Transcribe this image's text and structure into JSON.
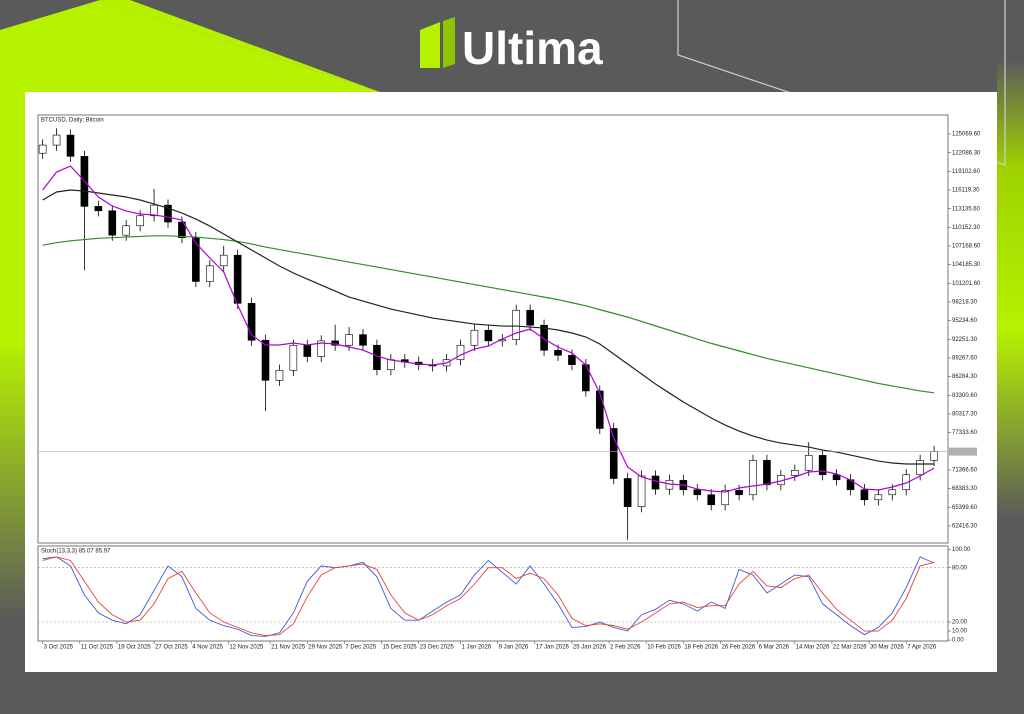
{
  "header": {
    "brand": "Ultima"
  },
  "chart_data": {
    "type": "candlestick",
    "title": "BTCUSD, Daily: Bitcoin",
    "x": [
      "2025-10-03",
      "2025-10-06",
      "2025-10-09",
      "2025-10-12",
      "2025-10-15",
      "2025-10-18",
      "2025-10-21",
      "2025-10-24",
      "2025-10-27",
      "2025-10-30",
      "2025-11-02",
      "2025-11-05",
      "2025-11-08",
      "2025-11-11",
      "2025-11-14",
      "2025-11-17",
      "2025-11-20",
      "2025-11-23",
      "2025-11-26",
      "2025-11-29",
      "2025-12-02",
      "2025-12-05",
      "2025-12-08",
      "2025-12-11",
      "2025-12-14",
      "2025-12-17",
      "2025-12-20",
      "2025-12-23",
      "2025-12-26",
      "2025-12-29",
      "2026-01-01",
      "2026-01-04",
      "2026-01-07",
      "2026-01-10",
      "2026-01-13",
      "2026-01-16",
      "2026-01-19",
      "2026-01-22",
      "2026-01-25",
      "2026-01-28",
      "2026-01-31",
      "2026-02-03",
      "2026-02-06",
      "2026-02-09",
      "2026-02-12",
      "2026-02-15",
      "2026-02-18",
      "2026-02-21",
      "2026-02-24",
      "2026-02-27",
      "2026-03-02",
      "2026-03-05",
      "2026-03-08",
      "2026-03-11",
      "2026-03-14",
      "2026-03-17",
      "2026-03-20",
      "2026-03-23",
      "2026-03-26",
      "2026-03-29",
      "2026-04-01",
      "2026-04-04",
      "2026-04-07",
      "2026-04-10",
      "2026-04-13"
    ],
    "open": [
      122000,
      123300,
      124900,
      121500,
      113500,
      112800,
      108900,
      110400,
      112000,
      113700,
      111000,
      108500,
      101500,
      104000,
      105700,
      98000,
      92100,
      85700,
      87300,
      91300,
      89500,
      92000,
      91300,
      93000,
      91300,
      87400,
      89000,
      88600,
      88200,
      88000,
      89000,
      91300,
      93700,
      92000,
      92200,
      96900,
      94500,
      90500,
      89700,
      88200,
      84000,
      78000,
      70000,
      65500,
      70400,
      68300,
      69700,
      68200,
      67400,
      65800,
      68100,
      67400,
      72900,
      69000,
      70500,
      71300,
      73700,
      70600,
      69800,
      68200,
      66600,
      67400,
      68200,
      70600,
      72900
    ],
    "high": [
      124200,
      126000,
      125800,
      122400,
      114400,
      113700,
      111300,
      112900,
      116300,
      114600,
      111900,
      109400,
      104900,
      107200,
      106600,
      98900,
      93000,
      88200,
      92200,
      92200,
      92900,
      94600,
      94200,
      93900,
      92200,
      89900,
      89900,
      89500,
      89100,
      89900,
      92200,
      94600,
      94600,
      93100,
      97800,
      97800,
      95400,
      91400,
      90600,
      89100,
      84900,
      78900,
      70900,
      71300,
      71300,
      70600,
      70600,
      69100,
      68300,
      69000,
      69000,
      73800,
      73800,
      71400,
      72200,
      75800,
      74600,
      71500,
      70700,
      69100,
      68300,
      69100,
      71500,
      73800,
      75200
    ],
    "low": [
      121100,
      122400,
      120600,
      103300,
      111900,
      108000,
      108000,
      109500,
      111100,
      110100,
      107600,
      100600,
      100600,
      103100,
      97100,
      91200,
      80800,
      84800,
      86400,
      88600,
      88600,
      90400,
      90400,
      90400,
      86500,
      86500,
      87700,
      87300,
      87100,
      87100,
      88100,
      90400,
      91100,
      91100,
      91300,
      93600,
      89600,
      88800,
      87300,
      83100,
      77100,
      69100,
      60200,
      64600,
      67400,
      67400,
      67300,
      66500,
      64900,
      64900,
      66500,
      66500,
      68100,
      68100,
      69600,
      70400,
      69700,
      68900,
      67300,
      65700,
      65700,
      66500,
      67300,
      69700,
      72000
    ],
    "close": [
      123300,
      124900,
      121500,
      113500,
      112800,
      108900,
      110400,
      112000,
      113700,
      111000,
      108500,
      101500,
      104000,
      105700,
      98000,
      92100,
      85700,
      87300,
      91300,
      89500,
      92000,
      91300,
      93000,
      91300,
      87400,
      89000,
      88600,
      88200,
      88000,
      89000,
      91300,
      93700,
      92000,
      92200,
      96900,
      94500,
      90500,
      89700,
      88200,
      84000,
      78000,
      70000,
      65500,
      70400,
      68300,
      69700,
      68200,
      67400,
      65800,
      68100,
      67400,
      72900,
      69000,
      70500,
      71300,
      73700,
      70600,
      69800,
      68200,
      66600,
      67400,
      68200,
      70600,
      72900,
      74300
    ],
    "bull_color": "#ffffff",
    "bear_color": "#000000",
    "overlays": [
      {
        "color": "#2f8f24",
        "values": [
          107300,
          107700,
          108000,
          108200,
          108400,
          108500,
          108600,
          108700,
          108800,
          108800,
          108700,
          108600,
          108400,
          108200,
          107900,
          107500,
          107000,
          106600,
          106200,
          105800,
          105400,
          105000,
          104600,
          104200,
          103800,
          103400,
          103000,
          102600,
          102200,
          101800,
          101400,
          101000,
          100600,
          100200,
          99800,
          99400,
          99000,
          98600,
          98100,
          97600,
          97000,
          96400,
          95800,
          95100,
          94400,
          93700,
          93000,
          92300,
          91600,
          91000,
          90400,
          89800,
          89200,
          88700,
          88200,
          87700,
          87200,
          86700,
          86200,
          85700,
          85200,
          84800,
          84400,
          84000,
          83700
        ]
      },
      {
        "color": "#222222",
        "values": [
          114520,
          115800,
          116120,
          115960,
          115640,
          115320,
          115000,
          114520,
          113880,
          113240,
          112440,
          111480,
          110360,
          109080,
          107800,
          106530,
          105250,
          103970,
          102850,
          101890,
          100930,
          99970,
          99010,
          98370,
          97730,
          97090,
          96610,
          96130,
          95650,
          95330,
          95010,
          94690,
          94530,
          94370,
          94370,
          94210,
          94050,
          93740,
          93260,
          92620,
          91500,
          89900,
          88300,
          86700,
          85100,
          83660,
          82230,
          80950,
          79670,
          78550,
          77590,
          76790,
          76150,
          75670,
          75350,
          75030,
          74550,
          74230,
          73750,
          73270,
          72790,
          72480,
          72320,
          72320,
          72320
        ]
      },
      {
        "color": "#b400d8",
        "values": [
          116120,
          118990,
          119950,
          117560,
          115000,
          113560,
          112760,
          112280,
          112120,
          111800,
          111320,
          107650,
          105250,
          103010,
          97735,
          92940,
          91340,
          91340,
          91660,
          91340,
          91660,
          91500,
          91020,
          90540,
          89580,
          88940,
          88620,
          88300,
          88140,
          88460,
          89740,
          90700,
          91180,
          92300,
          93260,
          93900,
          92300,
          91020,
          90060,
          88140,
          83660,
          76470,
          71840,
          70240,
          69600,
          69120,
          68960,
          68320,
          68000,
          67840,
          68480,
          68800,
          69120,
          69600,
          70240,
          71040,
          71200,
          70720,
          69760,
          68320,
          68160,
          68640,
          69280,
          70400,
          71680
        ]
      }
    ],
    "xlim": [
      "2025-10-02",
      "2026-04-16"
    ],
    "xticks": [
      {
        "value": "2025-10-03",
        "label": "3 Oct 2025"
      },
      {
        "value": "2025-10-11",
        "label": "11 Oct 2025"
      },
      {
        "value": "2025-10-19",
        "label": "19 Oct 2025"
      },
      {
        "value": "2025-10-27",
        "label": "27 Oct 2025"
      },
      {
        "value": "2025-11-04",
        "label": "4 Nov 2025"
      },
      {
        "value": "2025-11-12",
        "label": "12 Nov 2025"
      },
      {
        "value": "2025-11-21",
        "label": "21 Nov 2025"
      },
      {
        "value": "2025-11-29",
        "label": "29 Nov 2025"
      },
      {
        "value": "2025-12-07",
        "label": "7 Dec 2025"
      },
      {
        "value": "2025-12-15",
        "label": "15 Dec 2025"
      },
      {
        "value": "2025-12-23",
        "label": "23 Dec 2025"
      },
      {
        "value": "2026-01-01",
        "label": "1 Jan 2026"
      },
      {
        "value": "2026-01-09",
        "label": "9 Jan 2026"
      },
      {
        "value": "2026-01-17",
        "label": "17 Jan 2026"
      },
      {
        "value": "2026-01-25",
        "label": "25 Jan 2026"
      },
      {
        "value": "2026-02-02",
        "label": "2 Feb 2026"
      },
      {
        "value": "2026-02-10",
        "label": "10 Feb 2026"
      },
      {
        "value": "2026-02-18",
        "label": "18 Feb 2026"
      },
      {
        "value": "2026-02-26",
        "label": "26 Feb 2026"
      },
      {
        "value": "2026-03-06",
        "label": "6 Mar 2026"
      },
      {
        "value": "2026-03-14",
        "label": "14 Mar 2026"
      },
      {
        "value": "2026-03-22",
        "label": "22 Mar 2026"
      },
      {
        "value": "2026-03-30",
        "label": "30 Mar 2026"
      },
      {
        "value": "2026-04-07",
        "label": "7 Apr 2026"
      }
    ],
    "ylim": [
      59690,
      128110
    ],
    "yticks": [
      {
        "value": 125069.6,
        "label": "125069.60"
      },
      {
        "value": 122086.3,
        "label": "122086.30"
      },
      {
        "value": 119102.6,
        "label": "119102.60"
      },
      {
        "value": 116119.3,
        "label": "116119.30"
      },
      {
        "value": 113135.6,
        "label": "113135.60"
      },
      {
        "value": 110152.3,
        "label": "110152.30"
      },
      {
        "value": 107168.6,
        "label": "107168.60"
      },
      {
        "value": 104185.3,
        "label": "104185.30"
      },
      {
        "value": 101201.6,
        "label": "101201.60"
      },
      {
        "value": 98218.3,
        "label": "98218.30"
      },
      {
        "value": 95234.6,
        "label": "95234.60"
      },
      {
        "value": 92251.3,
        "label": "92251.30"
      },
      {
        "value": 89267.6,
        "label": "89267.60"
      },
      {
        "value": 86284.3,
        "label": "86284.30"
      },
      {
        "value": 83300.6,
        "label": "83300.60"
      },
      {
        "value": 80317.3,
        "label": "80317.30"
      },
      {
        "value": 77333.6,
        "label": "77333.60"
      },
      {
        "value": 71366.6,
        "label": "71366.60"
      },
      {
        "value": 68383.3,
        "label": "68383.30"
      },
      {
        "value": 65399.6,
        "label": "65399.60"
      },
      {
        "value": 62416.3,
        "label": "62416.30"
      }
    ],
    "indicator": {
      "title": "Stoch(13,3,3) 85.07 85.97",
      "ylim": [
        -1,
        104
      ],
      "levels": [
        80,
        20
      ],
      "yticks": [
        {
          "value": 100,
          "label": "100.00"
        },
        {
          "value": 80,
          "label": "80.00"
        },
        {
          "value": 20,
          "label": "20.00"
        },
        {
          "value": 10,
          "label": "10.00"
        },
        {
          "value": 0,
          "label": "0.00"
        }
      ],
      "series": [
        {
          "color": "#3b5bdb",
          "values": [
            90,
            92,
            82,
            50,
            30,
            22,
            18,
            28,
            55,
            82,
            70,
            35,
            22,
            16,
            12,
            5,
            4,
            8,
            30,
            65,
            82,
            80,
            82,
            86,
            70,
            35,
            22,
            22,
            32,
            42,
            50,
            72,
            88,
            75,
            62,
            82,
            62,
            40,
            14,
            15,
            20,
            14,
            10,
            28,
            34,
            44,
            40,
            32,
            42,
            35,
            78,
            72,
            52,
            62,
            72,
            70,
            40,
            28,
            16,
            6,
            14,
            30,
            58,
            92,
            85.07
          ]
        },
        {
          "color": "#e8452c",
          "values": [
            88,
            92,
            88,
            65,
            42,
            28,
            20,
            22,
            40,
            68,
            76,
            52,
            30,
            20,
            14,
            8,
            5,
            6,
            18,
            48,
            72,
            80,
            82,
            84,
            78,
            50,
            30,
            22,
            28,
            38,
            46,
            62,
            80,
            80,
            68,
            74,
            68,
            50,
            24,
            16,
            18,
            16,
            12,
            20,
            30,
            40,
            42,
            36,
            38,
            38,
            62,
            76,
            60,
            58,
            68,
            72,
            52,
            34,
            22,
            10,
            10,
            22,
            46,
            82,
            85.97
          ]
        }
      ]
    }
  }
}
